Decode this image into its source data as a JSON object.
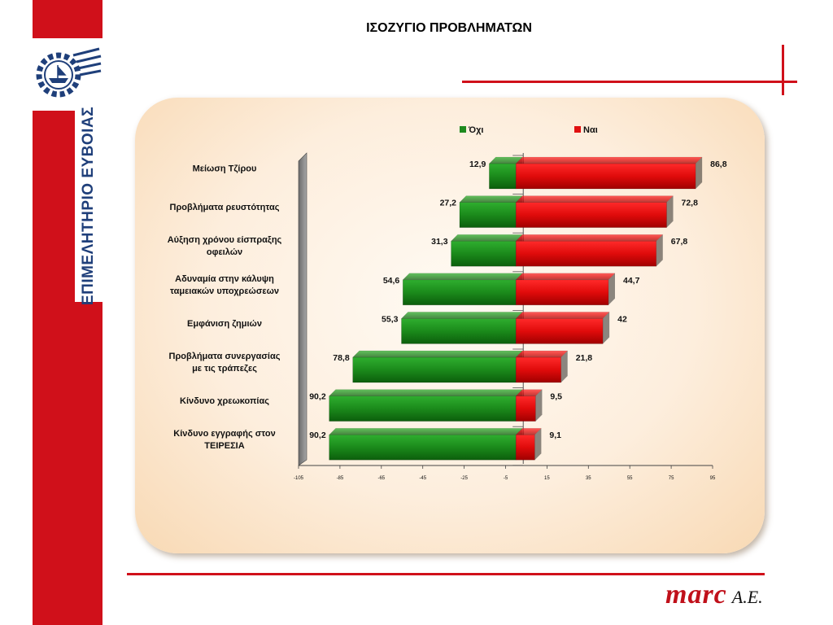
{
  "page": {
    "title": "ΙΣΟΖΥΓΙΟ ΠΡΟΒΛΗΜΑΤΩΝ",
    "side_label": "ΕΠΙΜΕΛΗΤΗΡΙΟ ΕΥΒΟΙΑΣ",
    "brand_name": "marc",
    "brand_suffix": "A.E.",
    "colors": {
      "accent_red": "#d0101a",
      "side_text_blue": "#1f3f7a"
    }
  },
  "chart_data": {
    "type": "bar",
    "orientation": "horizontal-diverging",
    "categories": [
      [
        "Μείωση Τζίρου"
      ],
      [
        "Προβλήματα  ρευστότητας"
      ],
      [
        "Αύξηση χρόνου είσπραξης",
        "οφειλών"
      ],
      [
        "Αδυναμία  στην κάλυψη",
        "ταμειακών υποχρεώσεων"
      ],
      [
        "Εμφάνιση ζημιών"
      ],
      [
        "Προβλήματα συνεργασίας",
        "με τις τράπεζες"
      ],
      [
        "Κίνδυνο χρεωκοπίας"
      ],
      [
        "Κίνδυνο εγγραφής στον",
        "ΤΕΙΡΕΣΙΑ"
      ]
    ],
    "series": [
      {
        "name": "Όχι",
        "color": "#1e8a1e",
        "direction": "negative",
        "values": [
          12.9,
          27.2,
          31.3,
          54.6,
          55.3,
          78.8,
          90.2,
          90.2
        ],
        "labels": [
          "12,9",
          "27,2",
          "31,3",
          "54,6",
          "55,3",
          "78,8",
          "90,2",
          "90,2"
        ]
      },
      {
        "name": "Ναι",
        "color": "#e01010",
        "direction": "positive",
        "values": [
          86.8,
          72.8,
          67.8,
          44.7,
          42,
          21.8,
          9.5,
          9.1
        ],
        "labels": [
          "86,8",
          "72,8",
          "67,8",
          "44,7",
          "42",
          "21,8",
          "9,5",
          "9,1"
        ]
      }
    ],
    "x_ticks": [
      -105,
      -85,
      -65,
      -45,
      -25,
      -5,
      15,
      35,
      55,
      75,
      95
    ],
    "xlim": [
      -105,
      95
    ],
    "zero_value": 0,
    "legend_position": "top",
    "grid": false,
    "title": "",
    "xlabel": "",
    "ylabel": ""
  }
}
